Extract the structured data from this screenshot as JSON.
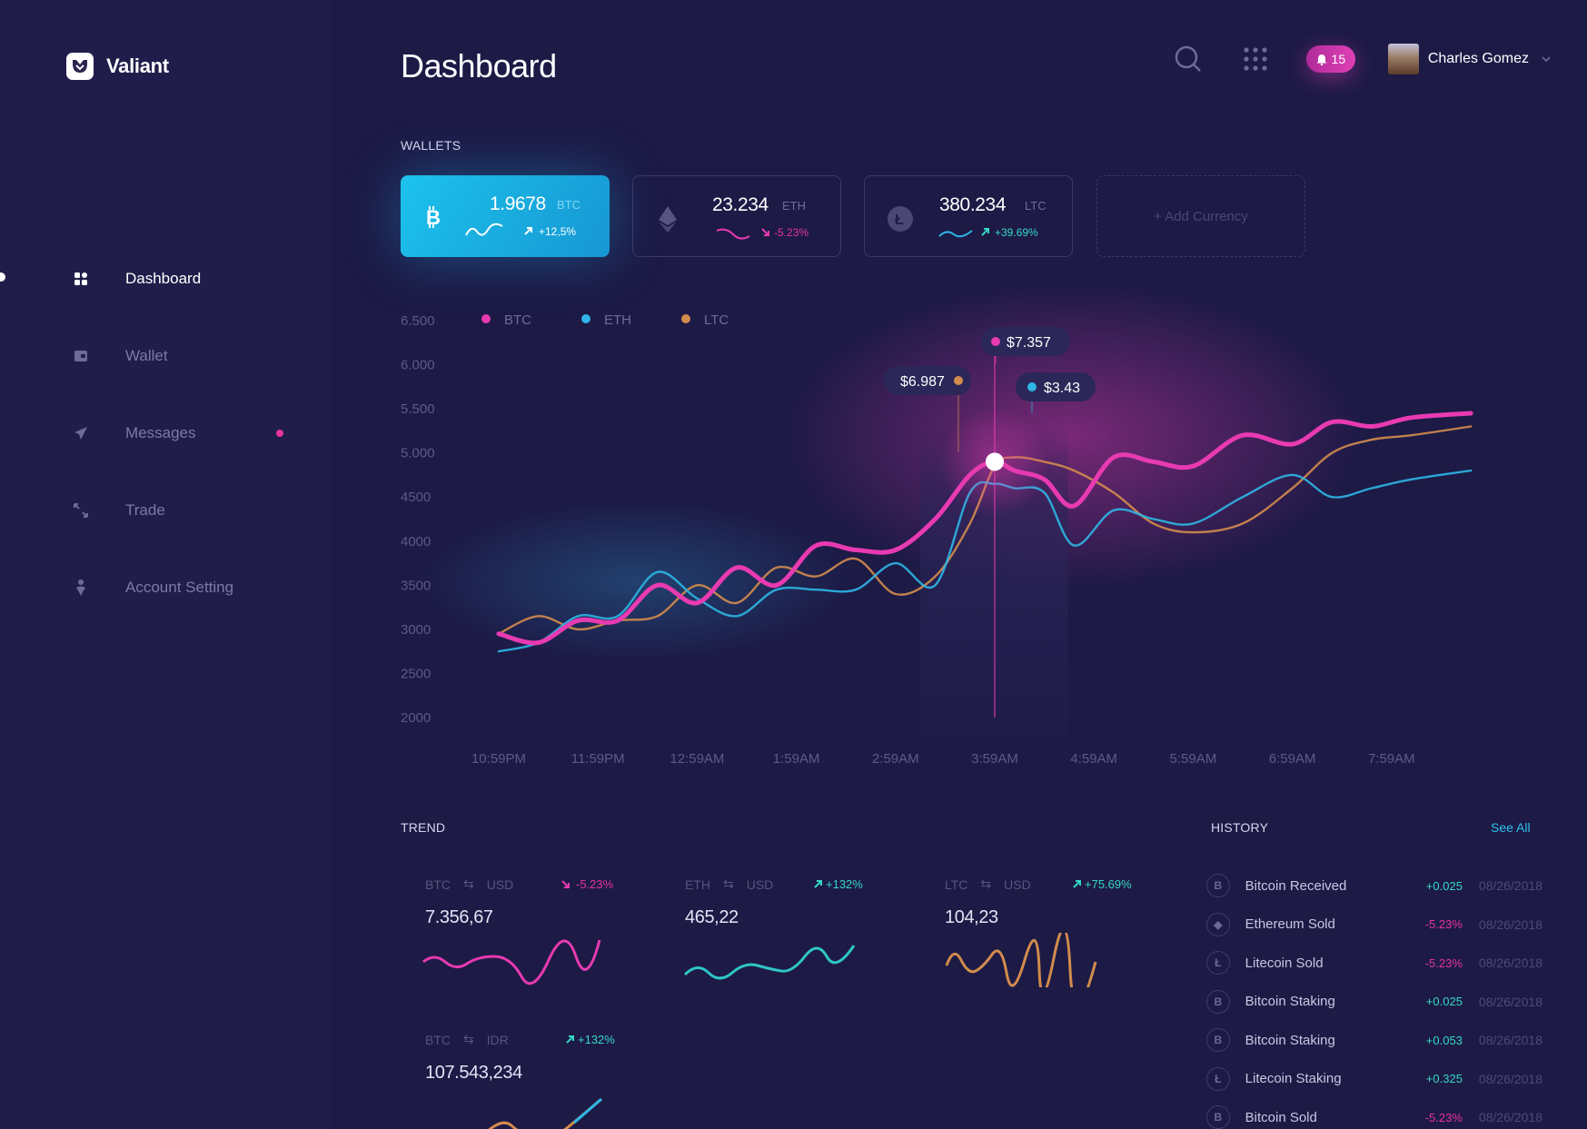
{
  "app": {
    "name": "Valiant"
  },
  "sidebar": {
    "items": [
      {
        "label": "Dashboard",
        "icon": "grid-icon",
        "active": true
      },
      {
        "label": "Wallet",
        "icon": "wallet-icon"
      },
      {
        "label": "Messages",
        "icon": "send-icon",
        "has_unread": true
      },
      {
        "label": "Trade",
        "icon": "swap-arrows-icon"
      },
      {
        "label": "Account Setting",
        "icon": "user-pin-icon"
      }
    ]
  },
  "header": {
    "title": "Dashboard",
    "notifications": "15",
    "user_name": "Charles Gomez"
  },
  "wallets": {
    "label": "WALLETS",
    "items": [
      {
        "amount": "1.9678",
        "symbol": "BTC",
        "change": "+12,5%",
        "direction": "up",
        "icon": "bitcoin-icon",
        "color": "#1cc2ec"
      },
      {
        "amount": "23.234",
        "symbol": "ETH",
        "change": "-5.23%",
        "direction": "down",
        "icon": "ethereum-icon"
      },
      {
        "amount": "380.234",
        "symbol": "LTC",
        "change": "+39.69%",
        "direction": "up",
        "icon": "litecoin-icon"
      }
    ],
    "add_label": "+ Add Currency"
  },
  "chart_data": {
    "type": "line",
    "legend": [
      "BTC",
      "ETH",
      "LTC"
    ],
    "y_ticks": [
      "6.500",
      "6.000",
      "5.500",
      "5.000",
      "4500",
      "4000",
      "3500",
      "3000",
      "2500",
      "2000"
    ],
    "x_ticks": [
      "10:59PM",
      "11:59PM",
      "12:59AM",
      "1:59AM",
      "2:59AM",
      "3:59AM",
      "4:59AM",
      "5:59AM",
      "6:59AM",
      "7:59AM"
    ],
    "ylim": [
      2000,
      6500
    ],
    "series": [
      {
        "name": "BTC",
        "color": "#e83ab1",
        "x": [
          0,
          0.4,
          0.8,
          1.2,
          1.6,
          2.0,
          2.4,
          2.8,
          3.2,
          3.6,
          4.0,
          4.4,
          4.75,
          5.0,
          5.2,
          5.5,
          5.8,
          6.2,
          6.6,
          7.0,
          7.5,
          8.0,
          8.4,
          8.8,
          9.2,
          9.8
        ],
        "values": [
          2950,
          2850,
          3100,
          3100,
          3500,
          3300,
          3700,
          3500,
          3950,
          3900,
          3900,
          4250,
          4750,
          4900,
          4800,
          4700,
          4400,
          4950,
          4900,
          4850,
          5200,
          5100,
          5350,
          5300,
          5400,
          5450
        ]
      },
      {
        "name": "ETH",
        "color": "#2fb6e6",
        "x": [
          0,
          0.4,
          0.8,
          1.2,
          1.6,
          2.0,
          2.4,
          2.8,
          3.2,
          3.6,
          4.0,
          4.4,
          4.75,
          5.0,
          5.2,
          5.5,
          5.8,
          6.2,
          6.6,
          7.0,
          7.5,
          8.0,
          8.4,
          8.8,
          9.2,
          9.8
        ],
        "values": [
          2750,
          2850,
          3150,
          3150,
          3650,
          3350,
          3150,
          3450,
          3450,
          3450,
          3750,
          3500,
          4550,
          4650,
          4600,
          4550,
          3950,
          4350,
          4250,
          4200,
          4500,
          4750,
          4500,
          4600,
          4700,
          4800
        ]
      },
      {
        "name": "LTC",
        "color": "#d38c4c",
        "x": [
          0,
          0.4,
          0.8,
          1.2,
          1.6,
          2.0,
          2.4,
          2.8,
          3.2,
          3.6,
          4.0,
          4.4,
          4.75,
          5.0,
          5.2,
          5.5,
          5.8,
          6.2,
          6.6,
          7.0,
          7.5,
          8.0,
          8.4,
          8.8,
          9.2,
          9.8
        ],
        "values": [
          2950,
          3150,
          3000,
          3100,
          3150,
          3500,
          3300,
          3700,
          3600,
          3800,
          3400,
          3600,
          4200,
          4850,
          4950,
          4900,
          4800,
          4550,
          4200,
          4100,
          4200,
          4600,
          5000,
          5150,
          5200,
          5300
        ]
      }
    ],
    "tooltips": [
      {
        "label": "$7.357",
        "series": "BTC"
      },
      {
        "label": "$6.987",
        "series": "LTC"
      },
      {
        "label": "$3.43",
        "series": "ETH"
      }
    ]
  },
  "trend": {
    "label": "TREND",
    "cards": [
      {
        "base": "BTC",
        "quote": "USD",
        "change": "-5.23%",
        "direction": "down",
        "value": "7.356,67",
        "color": "#e83ab1"
      },
      {
        "base": "ETH",
        "quote": "USD",
        "change": "+132%",
        "direction": "up",
        "value": "465,22",
        "color": "#2fc6c6"
      },
      {
        "base": "LTC",
        "quote": "USD",
        "change": "+75.69%",
        "direction": "up",
        "value": "104,23",
        "color": "#d38c4c"
      },
      {
        "base": "BTC",
        "quote": "IDR",
        "change": "+132%",
        "direction": "up",
        "value": "107.543,234",
        "color": "#d38c4c"
      }
    ]
  },
  "history": {
    "label": "HISTORY",
    "see_all": "See All",
    "rows": [
      {
        "icon": "bitcoin-icon",
        "glyph": "B",
        "title": "Bitcoin Received",
        "amount": "+0.025",
        "direction": "up",
        "date": "08/26/2018"
      },
      {
        "icon": "ethereum-icon",
        "glyph": "◆",
        "title": "Ethereum Sold",
        "amount": "-5.23%",
        "direction": "down",
        "date": "08/26/2018"
      },
      {
        "icon": "litecoin-icon",
        "glyph": "Ł",
        "title": "Litecoin Sold",
        "amount": "-5.23%",
        "direction": "down",
        "date": "08/26/2018"
      },
      {
        "icon": "bitcoin-icon",
        "glyph": "B",
        "title": "Bitcoin Staking",
        "amount": "+0.025",
        "direction": "up",
        "date": "08/26/2018"
      },
      {
        "icon": "bitcoin-icon",
        "glyph": "B",
        "title": "Bitcoin Staking",
        "amount": "+0.053",
        "direction": "up",
        "date": "08/26/2018"
      },
      {
        "icon": "litecoin-icon",
        "glyph": "Ł",
        "title": "Litecoin Staking",
        "amount": "+0.325",
        "direction": "up",
        "date": "08/26/2018"
      },
      {
        "icon": "bitcoin-icon",
        "glyph": "B",
        "title": "Bitcoin Sold",
        "amount": "-5.23%",
        "direction": "down",
        "date": "08/26/2018"
      }
    ]
  }
}
